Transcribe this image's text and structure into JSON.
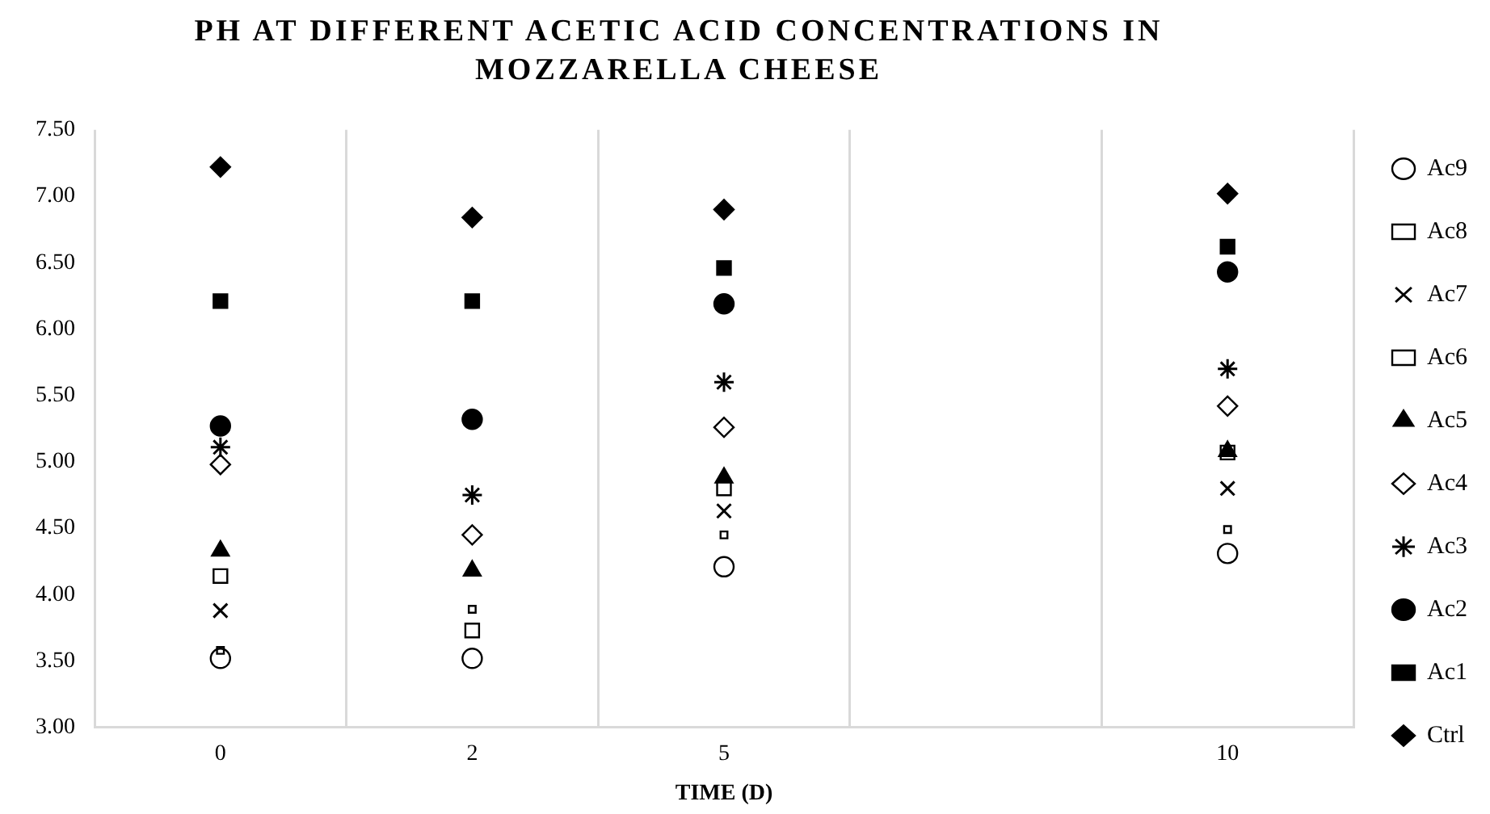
{
  "chart_data": {
    "type": "scatter",
    "title": "PH AT DIFFERENT ACETIC ACID CONCENTRATIONS IN MOZZARELLA CHEESE",
    "xlabel": "TIME (D)",
    "categories": [
      "0",
      "2",
      "5",
      null,
      "10"
    ],
    "ylim": [
      3,
      7.5
    ],
    "yticks": [
      {
        "value": 3,
        "label": "3.00"
      },
      {
        "value": 3.5,
        "label": "3.50"
      },
      {
        "value": 4,
        "label": "4.00"
      },
      {
        "value": 4.5,
        "label": "4.50"
      },
      {
        "value": 5,
        "label": "5.00"
      },
      {
        "value": 5.5,
        "label": "5.50"
      },
      {
        "value": 6,
        "label": "6.00"
      },
      {
        "value": 6.5,
        "label": "6.50"
      },
      {
        "value": 7,
        "label": "7.00"
      },
      {
        "value": 7.5,
        "label": "7.50"
      }
    ],
    "grid": "x",
    "legend": "right",
    "series": [
      {
        "name": "Ctrl",
        "color": "#000000",
        "marker": "diamond",
        "values": [
          7.22,
          6.84,
          6.9,
          null,
          7.02
        ]
      },
      {
        "name": "Ac1",
        "color": "#000000",
        "marker": "square",
        "values": [
          6.21,
          6.21,
          6.46,
          null,
          6.62
        ]
      },
      {
        "name": "Ac2",
        "color": "#000000",
        "marker": "circle",
        "values": [
          5.27,
          5.32,
          6.19,
          null,
          6.43
        ]
      },
      {
        "name": "Ac3",
        "color": "#000000",
        "marker": "cross",
        "values": [
          5.11,
          4.75,
          5.6,
          null,
          5.7
        ]
      },
      {
        "name": "Ac4",
        "color": "#000000",
        "marker": "diamond",
        "values": [
          4.98,
          4.45,
          5.26,
          null,
          5.42
        ]
      },
      {
        "name": "Ac5",
        "color": "#000000",
        "marker": "triangle",
        "values": [
          4.33,
          4.18,
          4.88,
          null,
          5.08
        ]
      },
      {
        "name": "Ac6",
        "color": "#000000",
        "marker": "square",
        "values": [
          4.14,
          3.73,
          4.8,
          null,
          5.07
        ]
      },
      {
        "name": "Ac7",
        "color": "#000000",
        "marker": "cross",
        "values": [
          3.88,
          null,
          4.63,
          null,
          4.8
        ]
      },
      {
        "name": "Ac8",
        "color": "#000000",
        "marker": "square",
        "values": [
          3.58,
          3.89,
          4.45,
          null,
          4.49
        ]
      },
      {
        "name": "Ac9",
        "color": "#000000",
        "marker": "circle",
        "values": [
          3.52,
          3.52,
          4.21,
          null,
          4.31
        ]
      }
    ]
  }
}
